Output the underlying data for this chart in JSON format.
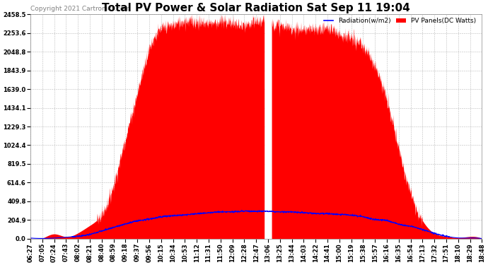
{
  "title": "Total PV Power & Solar Radiation Sat Sep 11 19:04",
  "copyright": "Copyright 2021 Cartronics.com",
  "legend_radiation": "Radiation(w/m2)",
  "legend_pv": "PV Panels(DC Watts)",
  "legend_color_radiation": "#0000ff",
  "legend_color_pv": "#ff0000",
  "ymax": 2458.5,
  "ymin": 0.0,
  "yticks": [
    0.0,
    204.9,
    409.8,
    614.6,
    819.5,
    1024.4,
    1229.3,
    1434.1,
    1639.0,
    1843.9,
    2048.8,
    2253.6,
    2458.5
  ],
  "background_color": "#ffffff",
  "plot_bg_color": "#ffffff",
  "grid_color": "#bbbbbb",
  "title_fontsize": 11,
  "axis_fontsize": 6,
  "copyright_fontsize": 6.5,
  "x_labels": [
    "06:27",
    "07:05",
    "07:24",
    "07:43",
    "08:02",
    "08:21",
    "08:40",
    "08:59",
    "09:18",
    "09:37",
    "09:56",
    "10:15",
    "10:34",
    "10:53",
    "11:12",
    "11:31",
    "11:50",
    "12:09",
    "12:28",
    "12:47",
    "13:06",
    "13:25",
    "13:44",
    "14:03",
    "14:22",
    "14:41",
    "15:00",
    "15:19",
    "15:38",
    "15:57",
    "16:16",
    "16:35",
    "16:54",
    "17:13",
    "17:32",
    "17:51",
    "18:10",
    "18:29",
    "18:48"
  ]
}
